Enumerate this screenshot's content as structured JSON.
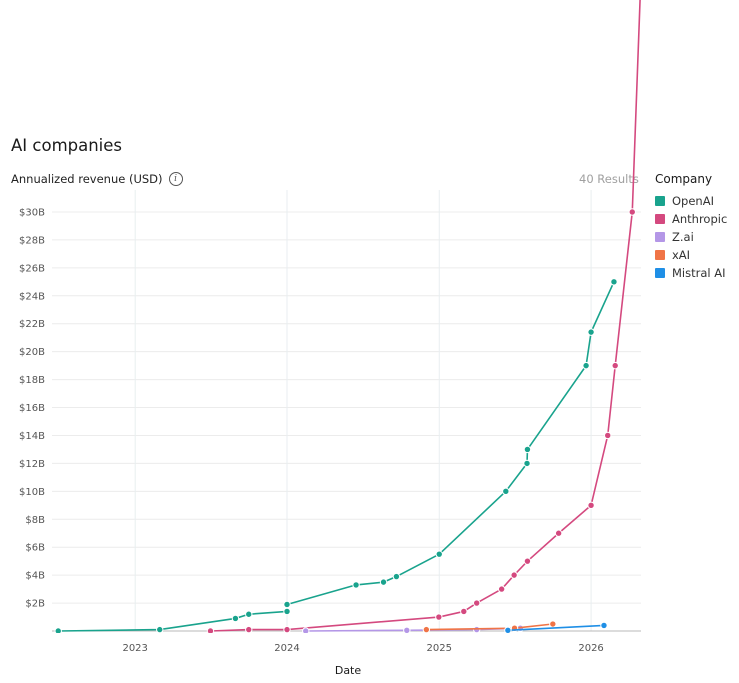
{
  "chart_data": {
    "type": "line",
    "title": "AI companies",
    "ylabel": "Annualized revenue (USD)",
    "xlabel": "Date",
    "results_label": "40 Results",
    "legend_title": "Company",
    "legend_placement": "right",
    "grid": true,
    "xlim": [
      "2022-06-15",
      "2026-05-01"
    ],
    "ylim": [
      0,
      30.5
    ],
    "y_ticks": [
      2,
      4,
      6,
      8,
      10,
      12,
      14,
      16,
      18,
      20,
      22,
      24,
      26,
      28,
      30
    ],
    "y_tick_labels": [
      "$2B",
      "$4B",
      "$6B",
      "$8B",
      "$10B",
      "$12B",
      "$14B",
      "$16B",
      "$18B",
      "$20B",
      "$22B",
      "$24B",
      "$26B",
      "$28B",
      "$30B"
    ],
    "x_ticks": [
      "2023-01-01",
      "2024-01-01",
      "2025-01-01",
      "2026-01-01"
    ],
    "x_tick_labels": [
      "2023",
      "2024",
      "2025",
      "2026"
    ],
    "y_unit": "billion USD",
    "series": [
      {
        "name": "OpenAI",
        "color": "#19a38d",
        "points": [
          [
            "2022-06-30",
            0
          ],
          [
            "2023-03-01",
            0.1
          ],
          [
            "2023-08-30",
            0.9
          ],
          [
            "2023-10-01",
            1.2
          ],
          [
            "2024-01-01",
            1.4
          ],
          [
            "2024-01-01",
            1.9
          ],
          [
            "2024-06-15",
            3.3
          ],
          [
            "2024-08-20",
            3.5
          ],
          [
            "2024-09-20",
            3.9
          ],
          [
            "2025-01-01",
            5.5
          ],
          [
            "2025-06-10",
            10
          ],
          [
            "2025-07-31",
            12
          ],
          [
            "2025-08-01",
            13
          ],
          [
            "2025-12-20",
            19
          ],
          [
            "2026-01-01",
            21.4
          ],
          [
            "2026-02-25",
            25
          ]
        ]
      },
      {
        "name": "Anthropic",
        "color": "#d4497f",
        "points": [
          [
            "2023-07-01",
            0
          ],
          [
            "2023-10-01",
            0.1
          ],
          [
            "2024-01-01",
            0.1
          ],
          [
            "2024-12-31",
            1
          ],
          [
            "2025-03-01",
            1.4
          ],
          [
            "2025-04-01",
            2
          ],
          [
            "2025-05-31",
            3
          ],
          [
            "2025-06-30",
            4
          ],
          [
            "2025-08-01",
            5
          ],
          [
            "2025-10-15",
            7
          ],
          [
            "2026-01-01",
            9
          ],
          [
            "2026-02-10",
            14
          ],
          [
            "2026-02-28",
            19
          ],
          [
            "2026-04-10",
            30
          ],
          [
            "2026-05-01",
            47
          ]
        ]
      },
      {
        "name": "Z.ai",
        "color": "#b497e7",
        "points": [
          [
            "2024-02-15",
            0
          ],
          [
            "2024-10-15",
            0.05
          ],
          [
            "2025-04-01",
            0.1
          ],
          [
            "2025-07-15",
            0.2
          ]
        ]
      },
      {
        "name": "xAI",
        "color": "#f07446",
        "points": [
          [
            "2024-12-01",
            0.1
          ],
          [
            "2025-07-01",
            0.2
          ],
          [
            "2025-10-01",
            0.5
          ]
        ]
      },
      {
        "name": "Mistral AI",
        "color": "#1f8fe6",
        "points": [
          [
            "2025-06-15",
            0.05
          ],
          [
            "2026-02-01",
            0.4
          ]
        ]
      }
    ]
  }
}
